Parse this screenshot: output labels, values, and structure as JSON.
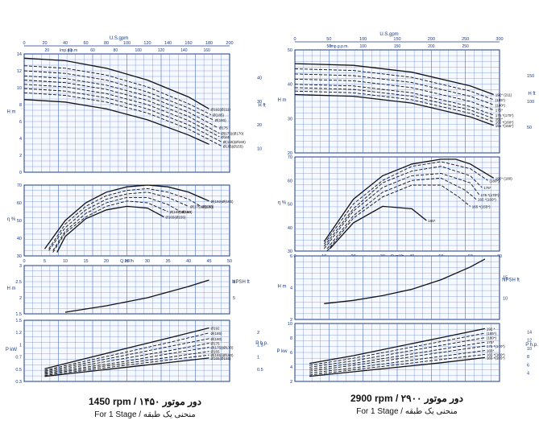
{
  "captions": {
    "left_title": "1450 rpm / دور موتور ۱۴۵۰",
    "left_sub": "For 1 Stage / منحنی یک طبقه",
    "right_title": "2900 rpm / دور موتور ۲۹۰۰",
    "right_sub": "For 1 Stage / منحنی یک طبقه"
  },
  "chart_data": [
    {
      "id": "left-head",
      "type": "line",
      "speed": "1450 rpm",
      "top_axis_label": "U.S.gpm",
      "top_axis_ticks": [
        "0",
        "20",
        "40",
        "60",
        "80",
        "100",
        "120",
        "140",
        "160",
        "180",
        "200"
      ],
      "imp_axis_label": "Imp.g.p.m",
      "imp_axis_ticks": [
        "20",
        "40",
        "60",
        "80",
        "100",
        "120",
        "140",
        "160"
      ],
      "ylabel": "H m",
      "ylabel_right": "H ft",
      "xlim": [
        0,
        50
      ],
      "ylim": [
        0,
        14
      ],
      "y_ticks": [
        "0",
        "2",
        "4",
        "6",
        "8",
        "10",
        "12",
        "14"
      ],
      "y_right_ticks": [
        "10",
        "20",
        "30",
        "40"
      ],
      "series": [
        {
          "name": "Ø192(Ø211)",
          "x": [
            0,
            10,
            20,
            30,
            40,
            45
          ],
          "y": [
            13.5,
            13.2,
            12.3,
            10.9,
            8.9,
            7.5
          ]
        },
        {
          "name": "Ø(185)",
          "x": [
            0,
            10,
            20,
            30,
            40,
            45.5
          ],
          "y": [
            12.6,
            12.3,
            11.5,
            10.1,
            8.1,
            6.8
          ]
        },
        {
          "name": "Ø(180)",
          "x": [
            0,
            10,
            20,
            30,
            40,
            46
          ],
          "y": [
            12.0,
            11.7,
            10.9,
            9.5,
            7.6,
            6.2
          ]
        },
        {
          "name": "Ø175",
          "x": [
            0,
            10,
            20,
            30,
            40,
            47
          ],
          "y": [
            11.4,
            11.1,
            10.3,
            9.0,
            7.1,
            5.3
          ]
        },
        {
          "name": "Ø(175)(Ø170)",
          "x": [
            0,
            10,
            20,
            30,
            40,
            47.5
          ],
          "y": [
            10.9,
            10.6,
            9.8,
            8.5,
            6.6,
            4.6
          ]
        },
        {
          "name": "Ø165",
          "x": [
            0,
            10,
            20,
            30,
            40,
            47.5
          ],
          "y": [
            10.4,
            10.1,
            9.3,
            8.0,
            6.1,
            4.2
          ]
        },
        {
          "name": "Ø(165)(Ø160)",
          "x": [
            0,
            10,
            20,
            30,
            40,
            48
          ],
          "y": [
            9.9,
            9.6,
            8.8,
            7.5,
            5.6,
            3.6
          ]
        },
        {
          "name": "Ø165(Ø155)",
          "x": [
            0,
            10,
            20,
            30,
            40,
            48
          ],
          "y": [
            9.4,
            9.1,
            8.3,
            7.0,
            5.1,
            3.1
          ]
        },
        {
          "name": "",
          "x": [
            0,
            10,
            20,
            30,
            40,
            45
          ],
          "y": [
            8.6,
            8.3,
            7.5,
            6.2,
            4.4,
            3.3
          ]
        }
      ]
    },
    {
      "id": "left-eff",
      "type": "line",
      "ylabel": "η %",
      "xlabel": "Q m³/h",
      "xlim": [
        0,
        50
      ],
      "ylim": [
        30,
        70
      ],
      "x_ticks": [
        "0",
        "5",
        "10",
        "15",
        "20",
        "25",
        "30",
        "35",
        "40",
        "45",
        "50"
      ],
      "y_ticks": [
        "30",
        "40",
        "50",
        "60",
        "70"
      ],
      "series": [
        {
          "name": "Ø(192)Ø(165)",
          "x": [
            5,
            10,
            15,
            20,
            25,
            30,
            35,
            40,
            45
          ],
          "y": [
            34,
            50,
            60,
            66,
            69,
            70,
            69,
            66,
            61
          ]
        },
        {
          "name": "Ø(180)",
          "x": [
            6,
            10,
            15,
            20,
            25,
            30,
            35,
            40,
            43
          ],
          "y": [
            34,
            48,
            58,
            64,
            67,
            68,
            66,
            62,
            58
          ]
        },
        {
          "name": "Ø(175)Ø(170)",
          "x": [
            6,
            10,
            15,
            20,
            25,
            30,
            35,
            40
          ],
          "y": [
            33,
            46,
            56,
            62,
            65,
            66,
            63,
            58
          ]
        },
        {
          "name": "Ø160",
          "x": [
            7,
            10,
            15,
            20,
            25,
            30,
            35,
            38
          ],
          "y": [
            33,
            44,
            54,
            60,
            63,
            63,
            59,
            55
          ]
        },
        {
          "name": "Ø(165)Ø(160)",
          "x": [
            7,
            10,
            15,
            20,
            25,
            30,
            35
          ],
          "y": [
            32,
            43,
            52,
            58,
            61,
            60,
            55
          ]
        },
        {
          "name": "Ø165(Ø155)",
          "x": [
            8,
            10,
            15,
            20,
            25,
            30,
            34
          ],
          "y": [
            32,
            41,
            51,
            56,
            58,
            57,
            52
          ]
        }
      ]
    },
    {
      "id": "left-npsh",
      "type": "line",
      "ylabel": "H m",
      "ylabel_right": "NPSH ft",
      "xlim": [
        0,
        50
      ],
      "ylim": [
        1.5,
        3
      ],
      "y_ticks": [
        "1.5",
        "2",
        "2.5",
        "3"
      ],
      "y_right_ticks": [
        "5",
        "8"
      ],
      "series": [
        {
          "name": "NPSH",
          "x": [
            10,
            20,
            30,
            40,
            45
          ],
          "y": [
            1.55,
            1.75,
            2.0,
            2.35,
            2.55
          ]
        }
      ]
    },
    {
      "id": "left-power",
      "type": "line",
      "ylabel": "P kW",
      "ylabel_right": "P h.p.",
      "xlim": [
        0,
        50
      ],
      "ylim": [
        0.3,
        1.5
      ],
      "y_ticks": [
        "0.3",
        "0.5",
        "0.7",
        "1",
        "1.2",
        "1.5"
      ],
      "y_right_ticks": [
        "0.5",
        "1",
        "1.5",
        "2"
      ],
      "series": [
        {
          "name": "Ø192",
          "x": [
            5,
            15,
            25,
            35,
            45
          ],
          "y": [
            0.55,
            0.75,
            0.95,
            1.15,
            1.35
          ]
        },
        {
          "name": "Ø(185)",
          "x": [
            5,
            15,
            25,
            35,
            45
          ],
          "y": [
            0.52,
            0.7,
            0.88,
            1.06,
            1.25
          ]
        },
        {
          "name": "Ø(180)",
          "x": [
            5,
            15,
            25,
            35,
            45
          ],
          "y": [
            0.5,
            0.66,
            0.82,
            0.98,
            1.14
          ]
        },
        {
          "name": "Ø175",
          "x": [
            5,
            15,
            25,
            35,
            45
          ],
          "y": [
            0.48,
            0.62,
            0.76,
            0.9,
            1.05
          ]
        },
        {
          "name": "Ø(175)(Ø170)",
          "x": [
            5,
            15,
            25,
            35,
            45
          ],
          "y": [
            0.46,
            0.58,
            0.7,
            0.84,
            0.97
          ]
        },
        {
          "name": "Ø165",
          "x": [
            5,
            15,
            25,
            35,
            45
          ],
          "y": [
            0.44,
            0.55,
            0.66,
            0.77,
            0.89
          ]
        },
        {
          "name": "Ø(165)(Ø160)",
          "x": [
            5,
            15,
            25,
            35,
            45
          ],
          "y": [
            0.42,
            0.52,
            0.62,
            0.72,
            0.82
          ]
        },
        {
          "name": "Ø165(Ø155)",
          "x": [
            5,
            15,
            25,
            35,
            45
          ],
          "y": [
            0.4,
            0.49,
            0.58,
            0.67,
            0.76
          ]
        }
      ]
    },
    {
      "id": "right-head",
      "type": "line",
      "speed": "2900 rpm",
      "top_axis_label": "U.S.gpm",
      "top_axis_ticks": [
        "0",
        "50",
        "100",
        "150",
        "200",
        "250",
        "300"
      ],
      "imp_axis_label": "Imp.g.p.m.",
      "imp_axis_ticks": [
        "50",
        "100",
        "150",
        "200",
        "250"
      ],
      "ylabel": "H m",
      "ylabel_right": "H ft",
      "xlim": [
        0,
        70
      ],
      "ylim": [
        0,
        60
      ],
      "y_ticks": [
        "20",
        "30",
        "40",
        "50"
      ],
      "y_right_ticks": [
        "50",
        "100",
        "150"
      ],
      "series": [
        {
          "name": "192* (211)",
          "x": [
            0,
            20,
            40,
            60,
            68
          ],
          "y": [
            52,
            51,
            47,
            39,
            34
          ]
        },
        {
          "name": "(185*)",
          "x": [
            0,
            20,
            40,
            60,
            68
          ],
          "y": [
            49,
            48,
            44,
            36,
            31
          ]
        },
        {
          "name": "(180*)",
          "x": [
            0,
            20,
            40,
            60,
            68
          ],
          "y": [
            46,
            45,
            41,
            33,
            28
          ]
        },
        {
          "name": "175*",
          "x": [
            0,
            20,
            40,
            60,
            68
          ],
          "y": [
            43,
            42,
            38,
            30,
            25
          ]
        },
        {
          "name": "175 *(170*)",
          "x": [
            0,
            20,
            40,
            60,
            68
          ],
          "y": [
            40,
            39,
            35,
            27,
            22
          ]
        },
        {
          "name": "165*",
          "x": [
            0,
            20,
            40,
            60,
            68
          ],
          "y": [
            38,
            37,
            33,
            25,
            20
          ]
        },
        {
          "name": "165 *(160*)",
          "x": [
            0,
            20,
            40,
            60,
            68
          ],
          "y": [
            36,
            35,
            31,
            23,
            18
          ]
        },
        {
          "name": "165 *(155*)",
          "x": [
            0,
            20,
            40,
            60,
            68
          ],
          "y": [
            34,
            33,
            29,
            21,
            16
          ]
        }
      ]
    },
    {
      "id": "right-eff",
      "type": "line",
      "ylabel": "η %",
      "xlabel": "Q m³/h",
      "xlim": [
        0,
        70
      ],
      "ylim": [
        30,
        70
      ],
      "x_ticks": [
        "0",
        "10",
        "20",
        "30",
        "40",
        "50",
        "60",
        "70"
      ],
      "y_ticks": [
        "30",
        "40",
        "50",
        "60",
        "70"
      ],
      "series": [
        {
          "name": "192* (180)",
          "x": [
            10,
            20,
            30,
            40,
            50,
            55,
            60,
            68
          ],
          "y": [
            34,
            52,
            62,
            67,
            69,
            69,
            67,
            61
          ]
        },
        {
          "name": "(180*)",
          "x": [
            10,
            20,
            30,
            40,
            50,
            60,
            66
          ],
          "y": [
            33,
            50,
            60,
            66,
            68,
            65,
            60
          ]
        },
        {
          "name": "175*",
          "x": [
            10,
            20,
            30,
            40,
            50,
            60,
            64
          ],
          "y": [
            32,
            48,
            59,
            64,
            66,
            62,
            57
          ]
        },
        {
          "name": "175 *(170*)",
          "x": [
            10,
            20,
            30,
            40,
            50,
            60,
            63
          ],
          "y": [
            31,
            47,
            57,
            62,
            63,
            59,
            54
          ]
        },
        {
          "name": "165 *(160*)",
          "x": [
            11,
            20,
            30,
            40,
            50,
            58,
            62
          ],
          "y": [
            31,
            45,
            55,
            60,
            61,
            56,
            52
          ]
        },
        {
          "name": "165 *(155*)",
          "x": [
            11,
            20,
            30,
            40,
            50,
            56,
            60
          ],
          "y": [
            30,
            44,
            53,
            58,
            58,
            53,
            49
          ]
        },
        {
          "name": "165*",
          "x": [
            12,
            20,
            30,
            40,
            45
          ],
          "y": [
            31,
            42,
            49,
            48,
            43
          ]
        }
      ]
    },
    {
      "id": "right-npsh",
      "type": "line",
      "ylabel": "H m",
      "ylabel_right": "NPSH ft",
      "xlim": [
        0,
        70
      ],
      "ylim": [
        2,
        6
      ],
      "y_ticks": [
        "2",
        "4",
        "6"
      ],
      "y_right_ticks": [
        "10",
        "15"
      ],
      "series": [
        {
          "name": "NPSH",
          "x": [
            10,
            20,
            30,
            40,
            50,
            60,
            65
          ],
          "y": [
            3.0,
            3.2,
            3.5,
            3.9,
            4.5,
            5.3,
            5.8
          ]
        }
      ]
    },
    {
      "id": "right-power",
      "type": "line",
      "ylabel": "P kw",
      "ylabel_right": "P h.p.",
      "xlim": [
        0,
        70
      ],
      "ylim": [
        2,
        11
      ],
      "y_ticks": [
        "2",
        "4",
        "6",
        "8",
        "10"
      ],
      "y_right_ticks": [
        "4",
        "6",
        "8",
        "10",
        "12",
        "14"
      ],
      "series": [
        {
          "name": "192 *",
          "x": [
            5,
            20,
            35,
            50,
            65
          ],
          "y": [
            4.8,
            6.0,
            7.4,
            8.8,
            10.2
          ]
        },
        {
          "name": "(185*)",
          "x": [
            5,
            20,
            35,
            50,
            65
          ],
          "y": [
            4.5,
            5.6,
            6.9,
            8.2,
            9.5
          ]
        },
        {
          "name": "(180*)",
          "x": [
            5,
            20,
            35,
            50,
            65
          ],
          "y": [
            4.2,
            5.2,
            6.4,
            7.6,
            8.8
          ]
        },
        {
          "name": "175*",
          "x": [
            5,
            20,
            35,
            50,
            65
          ],
          "y": [
            3.9,
            4.8,
            5.9,
            7.0,
            8.1
          ]
        },
        {
          "name": "175 *(170*)",
          "x": [
            5,
            20,
            35,
            50,
            65
          ],
          "y": [
            3.6,
            4.5,
            5.5,
            6.5,
            7.5
          ]
        },
        {
          "name": "165*",
          "x": [
            5,
            20,
            35,
            50,
            65
          ],
          "y": [
            3.3,
            4.1,
            5.0,
            5.9,
            6.8
          ]
        },
        {
          "name": "165 *(160*)",
          "x": [
            5,
            20,
            35,
            50,
            65
          ],
          "y": [
            3.0,
            3.8,
            4.6,
            5.4,
            6.2
          ]
        },
        {
          "name": "165 *(155*)",
          "x": [
            5,
            20,
            35,
            50,
            65
          ],
          "y": [
            2.8,
            3.5,
            4.2,
            4.9,
            5.7
          ]
        }
      ]
    }
  ]
}
